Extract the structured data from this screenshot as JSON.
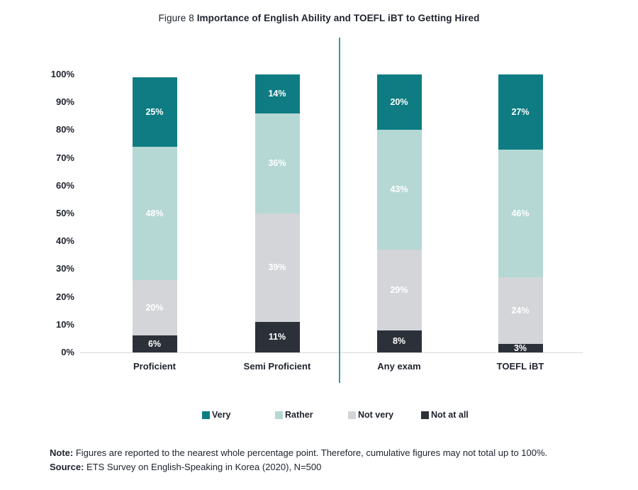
{
  "title": {
    "prefix": "Figure 8 ",
    "main": "Importance of English Ability and TOEFL iBT to Getting Hired"
  },
  "chart_data": {
    "type": "bar",
    "subtype": "stacked-percent-column",
    "title": "Figure 8 Importance of English Ability and TOEFL iBT to Getting Hired",
    "categories": [
      "Proficient",
      "Semi Proficient",
      "Any exam",
      "TOEFL iBT"
    ],
    "series": [
      {
        "name": "Very",
        "color": "#0e7c82",
        "values": [
          25,
          14,
          20,
          27
        ]
      },
      {
        "name": "Rather",
        "color": "#b5d8d5",
        "values": [
          48,
          36,
          43,
          46
        ]
      },
      {
        "name": "Not very",
        "color": "#d3d5d8",
        "values": [
          20,
          39,
          29,
          24
        ]
      },
      {
        "name": "Not at all",
        "color": "#2b3039",
        "values": [
          6,
          11,
          8,
          3
        ]
      }
    ],
    "stack_order_bottom_to_top": [
      "Not at all",
      "Not very",
      "Rather",
      "Very"
    ],
    "value_label_suffix": "%",
    "value_label_color": "#ffffff",
    "y_axis": {
      "min": 0,
      "max": 100,
      "tick_labels_bottom_up": [
        "0%",
        "10%",
        "20%",
        "30%",
        "40%",
        "50%",
        "60%",
        "70%",
        "80%",
        "90%",
        "100%"
      ]
    },
    "grid": false,
    "legend_position": "bottom",
    "group_divider": {
      "after_category_index": 1,
      "color": "#2fa098"
    }
  },
  "footer": {
    "note_label": "Note:",
    "note_text": " Figures are reported to the nearest whole percentage point. Therefore, cumulative figures may not total up to 100%.",
    "source_label": "Source:",
    "source_text": " ETS Survey on English-Speaking in Korea (2020), N=500"
  }
}
